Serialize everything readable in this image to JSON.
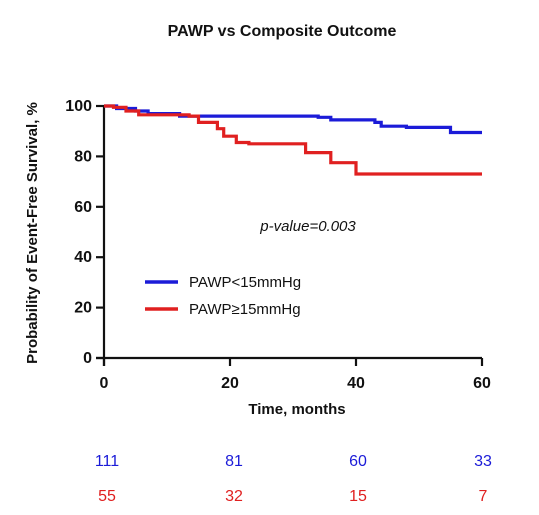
{
  "chart_data": {
    "type": "line",
    "title": "PAWP vs Composite Outcome",
    "xlabel": "Time, months",
    "ylabel": "Probability of Event-Free Survival, %",
    "xlim": [
      0,
      60
    ],
    "ylim": [
      0,
      100
    ],
    "x_ticks": [
      0,
      20,
      40,
      60
    ],
    "y_ticks": [
      0,
      20,
      40,
      60,
      80,
      100
    ],
    "grid": false,
    "legend_position": "lower-left",
    "annotation": "p-value=0.003",
    "series": [
      {
        "name": "PAWP<15mmHg",
        "color": "#1b1bd8",
        "x": [
          0,
          2,
          2,
          5,
          5,
          7,
          7,
          12,
          12,
          34,
          34,
          36,
          36,
          43,
          43,
          44,
          44,
          48,
          48,
          52,
          52,
          55,
          55,
          60
        ],
        "y": [
          100,
          100,
          99,
          99,
          98,
          98,
          97,
          97,
          96,
          96,
          95.5,
          95.5,
          94.5,
          94.5,
          93.5,
          93.5,
          92,
          92,
          91.5,
          91.5,
          91.5,
          91.5,
          89.5,
          89.5
        ]
      },
      {
        "name": "PAWP≥15mmHg",
        "color": "#e02020",
        "x": [
          0,
          1.5,
          1.5,
          3.5,
          3.5,
          5.5,
          5.5,
          13.5,
          13.5,
          15,
          15,
          18,
          18,
          19,
          19,
          21,
          21,
          23,
          23,
          32,
          32,
          36,
          36,
          40,
          40,
          60
        ],
        "y": [
          100,
          100,
          99.5,
          99.5,
          98,
          98,
          96.5,
          96.5,
          96,
          96,
          93.5,
          93.5,
          91,
          91,
          88,
          88,
          85.5,
          85.5,
          85,
          85,
          81.5,
          81.5,
          77.5,
          77.5,
          73,
          73
        ]
      }
    ],
    "risk_table": {
      "time_points": [
        0,
        20,
        40,
        60
      ],
      "rows": [
        {
          "color": "#1b1bd8",
          "values": [
            "111",
            "81",
            "60",
            "33"
          ]
        },
        {
          "color": "#e02020",
          "values": [
            "55",
            "32",
            "15",
            "7"
          ]
        }
      ]
    }
  }
}
